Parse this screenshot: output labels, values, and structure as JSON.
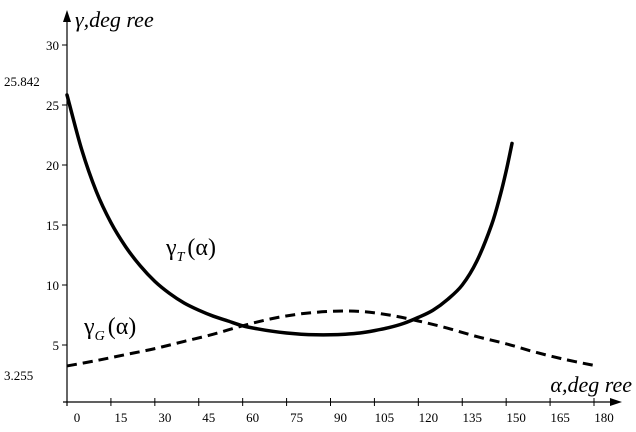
{
  "chart_data": {
    "type": "line",
    "xlabel": "α,deg ree",
    "ylabel": "γ,deg ree",
    "xlim": [
      0,
      180
    ],
    "ylim": [
      0,
      30
    ],
    "x_ticks": [
      "0",
      "15",
      "30",
      "45",
      "60",
      "75",
      "90",
      "105",
      "120",
      "135",
      "150",
      "165",
      "180"
    ],
    "y_ticks": [
      "5",
      "10",
      "15",
      "20",
      "25",
      "30"
    ],
    "y_extra_ticks": [
      {
        "value": 25.842,
        "label": "25.842"
      },
      {
        "value": 3.255,
        "label": "3.255"
      }
    ],
    "series": [
      {
        "name": "γT(α)",
        "name_main": "γ",
        "name_sub": "T",
        "name_arg": "(α)",
        "style": "solid",
        "x": [
          0,
          5,
          10,
          15,
          20,
          25,
          30,
          35,
          40,
          45,
          50,
          55,
          60,
          65,
          70,
          75,
          80,
          85,
          90,
          95,
          100,
          105,
          110,
          115,
          120,
          125,
          130,
          135,
          140,
          145,
          148,
          150,
          152
        ],
        "y": [
          25.842,
          21.3,
          17.8,
          15.2,
          13.2,
          11.6,
          10.3,
          9.3,
          8.5,
          7.9,
          7.4,
          7.0,
          6.6,
          6.35,
          6.15,
          6.0,
          5.9,
          5.85,
          5.85,
          5.9,
          6.0,
          6.2,
          6.45,
          6.8,
          7.3,
          7.9,
          8.8,
          10.0,
          12.0,
          15.0,
          17.5,
          19.5,
          21.8
        ]
      },
      {
        "name": "γG(α)",
        "name_main": "γ",
        "name_sub": "G",
        "name_arg": "(α)",
        "style": "dashed",
        "x": [
          0,
          10,
          20,
          30,
          40,
          50,
          60,
          70,
          80,
          90,
          100,
          110,
          120,
          130,
          140,
          150,
          160,
          170,
          180
        ],
        "y": [
          3.255,
          3.7,
          4.2,
          4.7,
          5.3,
          5.9,
          6.6,
          7.2,
          7.6,
          7.8,
          7.8,
          7.5,
          7.0,
          6.4,
          5.7,
          5.1,
          4.4,
          3.8,
          3.3
        ]
      }
    ]
  }
}
